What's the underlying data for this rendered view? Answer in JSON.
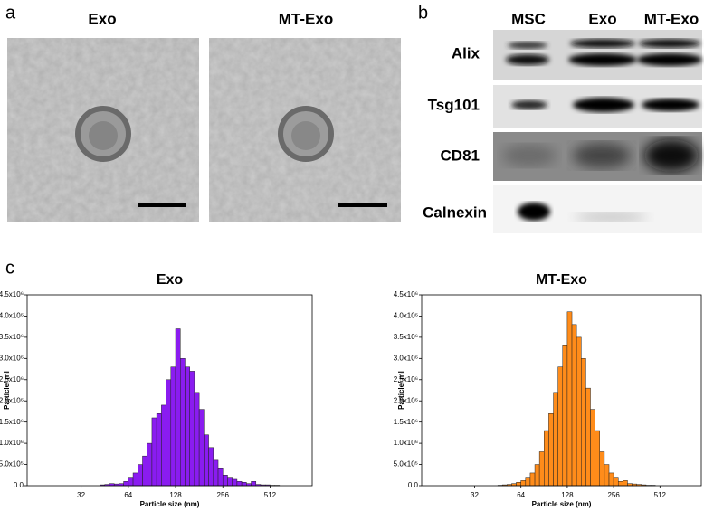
{
  "panel_labels": [
    "a",
    "b",
    "c"
  ],
  "tem": {
    "titles": [
      "Exo",
      "MT-Exo"
    ]
  },
  "blot": {
    "columns": [
      "MSC",
      "Exo",
      "MT-Exo"
    ],
    "rows": [
      "Alix",
      "Tsg101",
      "CD81",
      "Calnexin"
    ]
  },
  "chart_data": [
    {
      "type": "histogram",
      "title": "Exo",
      "xlabel": "Particle size (nm)",
      "ylabel": "Particle/ ml",
      "color": "#8a1cf0",
      "xscale": "log",
      "bins": [
        42.2,
        45.3,
        48.5,
        52.0,
        55.7,
        59.7,
        64,
        68.6,
        73.5,
        78.8,
        84.4,
        90.5,
        97.0,
        104.0,
        111.4,
        119.4,
        128,
        137.2,
        147.0,
        157.6,
        168.9,
        181.0,
        194.0,
        207.9,
        222.9,
        238.9,
        256,
        274.4,
        294.1,
        315.2,
        337.8,
        362.0,
        388.0,
        415.9,
        445.7,
        477.7,
        512,
        548.7,
        588.1,
        630.3,
        675.6
      ],
      "values": [
        20000,
        30000,
        50000,
        40000,
        50000,
        100000,
        200000,
        300000,
        500000,
        700000,
        1000000,
        1600000,
        1700000,
        1900000,
        2500000,
        2800000,
        3700000,
        3000000,
        2800000,
        2700000,
        2200000,
        1800000,
        1200000,
        900000,
        600000,
        400000,
        250000,
        200000,
        150000,
        100000,
        80000,
        50000,
        100000,
        30000,
        20000,
        20000,
        10000,
        10000,
        0,
        0
      ],
      "xlim": [
        14.5,
        950
      ],
      "xticks": [
        32,
        64,
        128,
        256,
        512
      ],
      "ylim": [
        0,
        4500000
      ],
      "yticks": [
        {
          "value": 0,
          "label": "0.0"
        },
        {
          "value": 500000,
          "label": "5.0x10⁵"
        },
        {
          "value": 1000000,
          "label": "1.0x10⁶"
        },
        {
          "value": 1500000,
          "label": "1.5x10⁶"
        },
        {
          "value": 2000000,
          "label": "2.0x10⁶"
        },
        {
          "value": 2500000,
          "label": "2.5x10⁶"
        },
        {
          "value": 3000000,
          "label": "3.0x10⁶"
        },
        {
          "value": 3500000,
          "label": "3.5x10⁶"
        },
        {
          "value": 4000000,
          "label": "4.0x10⁶"
        },
        {
          "value": 4500000,
          "label": "4.5x10⁶"
        }
      ]
    },
    {
      "type": "histogram",
      "title": "MT-Exo",
      "xlabel": "Particle size (nm)",
      "ylabel": "Particle/ ml",
      "color": "#ff8c1a",
      "xscale": "log",
      "bins": [
        42.2,
        45.3,
        48.5,
        52.0,
        55.7,
        59.7,
        64,
        68.6,
        73.5,
        78.8,
        84.4,
        90.5,
        97.0,
        104.0,
        111.4,
        119.4,
        128,
        137.2,
        147.0,
        157.6,
        168.9,
        181.0,
        194.0,
        207.9,
        222.9,
        238.9,
        256,
        274.4,
        294.1,
        315.2,
        337.8,
        362.0,
        388.0,
        415.9,
        445.7,
        477.7,
        512,
        548.7,
        588.1,
        630.3,
        675.6
      ],
      "values": [
        0,
        10000,
        20000,
        30000,
        50000,
        80000,
        120000,
        200000,
        300000,
        500000,
        800000,
        1300000,
        1700000,
        2200000,
        2800000,
        3300000,
        4100000,
        3800000,
        3500000,
        3000000,
        2300000,
        1800000,
        1300000,
        800000,
        500000,
        300000,
        200000,
        100000,
        120000,
        50000,
        40000,
        30000,
        20000,
        10000,
        10000,
        0,
        0,
        0,
        0,
        0
      ],
      "xlim": [
        14.5,
        950
      ],
      "xticks": [
        32,
        64,
        128,
        256,
        512
      ],
      "ylim": [
        0,
        4500000
      ],
      "yticks": [
        {
          "value": 0,
          "label": "0.0"
        },
        {
          "value": 500000,
          "label": "5.0x10⁵"
        },
        {
          "value": 1000000,
          "label": "1.0x10⁶"
        },
        {
          "value": 1500000,
          "label": "1.5x10⁶"
        },
        {
          "value": 2000000,
          "label": "2.0x10⁶"
        },
        {
          "value": 2500000,
          "label": "2.5x10⁶"
        },
        {
          "value": 3000000,
          "label": "3.0x10⁶"
        },
        {
          "value": 3500000,
          "label": "3.5x10⁶"
        },
        {
          "value": 4000000,
          "label": "4.0x10⁶"
        },
        {
          "value": 4500000,
          "label": "4.5x10⁶"
        }
      ]
    }
  ]
}
